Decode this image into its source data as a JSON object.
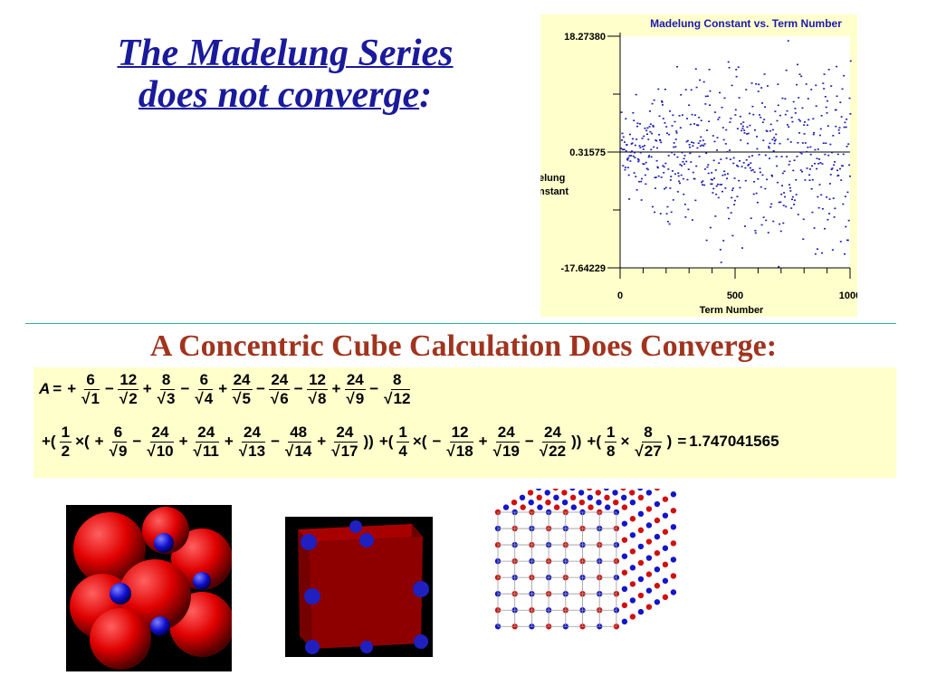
{
  "title": {
    "line1": "The Madelung Series",
    "line2": "does not converge",
    "colon": ":"
  },
  "chart_data": {
    "type": "scatter",
    "title": "Madelung Constant vs. Term Number",
    "xlabel": "Term Number",
    "ylabel": "Madelung Constant",
    "ylabel_visible_lines": [
      "elung",
      "nstant"
    ],
    "xlim": [
      0,
      1000
    ],
    "ylim": [
      -17.64229,
      18.2738
    ],
    "x_ticks": [
      "0",
      "500",
      "1000"
    ],
    "y_ticks": [
      "18.27380",
      "0.31575",
      "-17.64229"
    ],
    "reference_line": 0.31575,
    "point_color": "#1a1ab0",
    "series": [
      {
        "values_note_count": 1000
      }
    ]
  },
  "heading": "A Concentric Cube Calculation Does Converge:",
  "formula": {
    "lhs": "A",
    "row1": [
      {
        "op": "+",
        "n": "6",
        "d": "1"
      },
      {
        "op": "−",
        "n": "12",
        "d": "2"
      },
      {
        "op": "+",
        "n": "8",
        "d": "3"
      },
      {
        "op": "−",
        "n": "6",
        "d": "4"
      },
      {
        "op": "+",
        "n": "24",
        "d": "5"
      },
      {
        "op": "−",
        "n": "24",
        "d": "6"
      },
      {
        "op": "−",
        "n": "12",
        "d": "8"
      },
      {
        "op": "+",
        "n": "24",
        "d": "9"
      },
      {
        "op": "−",
        "n": "8",
        "d": "12"
      }
    ],
    "row2_g1_coef": {
      "n": "1",
      "d": "2"
    },
    "row2_g1": [
      {
        "op": "+",
        "n": "6",
        "d": "9"
      },
      {
        "op": "−",
        "n": "24",
        "d": "10"
      },
      {
        "op": "+",
        "n": "24",
        "d": "11"
      },
      {
        "op": "+",
        "n": "24",
        "d": "13"
      },
      {
        "op": "−",
        "n": "48",
        "d": "14"
      },
      {
        "op": "+",
        "n": "24",
        "d": "17"
      }
    ],
    "row2_g2_coef": {
      "n": "1",
      "d": "4"
    },
    "row2_g2": [
      {
        "op": "−",
        "n": "12",
        "d": "18"
      },
      {
        "op": "+",
        "n": "24",
        "d": "19"
      },
      {
        "op": "−",
        "n": "24",
        "d": "22"
      }
    ],
    "row2_g3_coef": {
      "n": "1",
      "d": "8"
    },
    "row2_g3": [
      {
        "op": "",
        "n": "8",
        "d": "27"
      }
    ],
    "result": "1.747041565"
  },
  "images": {
    "a": "ionic-crystal-spheres",
    "b": "red-cube-blue-ions",
    "c": "lattice-cube-model"
  }
}
